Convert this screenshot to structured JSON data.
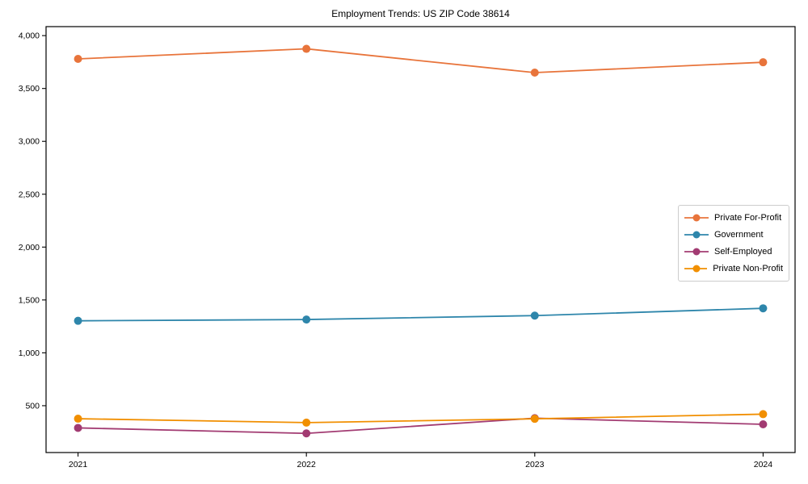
{
  "chart_data": {
    "type": "line",
    "title": "Employment Trends: US ZIP Code 38614",
    "xlabel": "",
    "ylabel": "",
    "x": [
      2021,
      2022,
      2023,
      2024
    ],
    "xtick_labels": [
      "2021",
      "2022",
      "2023",
      "2024"
    ],
    "series": [
      {
        "name": "Private For-Profit",
        "color": "#E8743B",
        "values": [
          3780,
          3875,
          3650,
          3748
        ]
      },
      {
        "name": "Government",
        "color": "#2E86AB",
        "values": [
          1303,
          1315,
          1352,
          1421
        ]
      },
      {
        "name": "Self-Employed",
        "color": "#A23B72",
        "values": [
          290,
          238,
          382,
          324
        ]
      },
      {
        "name": "Private Non-Profit",
        "color": "#F18F01",
        "values": [
          377,
          340,
          376,
          420
        ]
      }
    ],
    "xlim": [
      2020.86,
      2024.14
    ],
    "ylim": [
      57,
      4085
    ],
    "yticks": [
      500,
      1000,
      1500,
      2000,
      2500,
      3000,
      3500,
      4000
    ],
    "ytick_labels": [
      "500",
      "1,000",
      "1,500",
      "2,000",
      "2,500",
      "3,000",
      "3,500",
      "4,000"
    ],
    "grid": false,
    "legend_position": "center-right",
    "axis_color": "#000000",
    "marker": "o",
    "line_width": 1.8,
    "marker_radius": 5
  }
}
